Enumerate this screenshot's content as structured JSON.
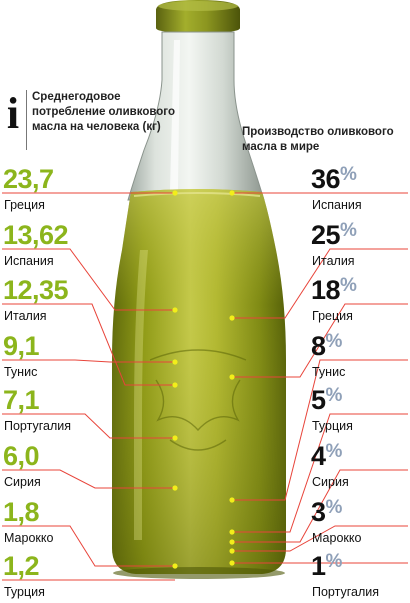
{
  "left": {
    "icon": "info-i",
    "title": "Среднегодовое потребление оливкового масла на человека (кг)",
    "items": [
      {
        "value": "23,7",
        "country": "Греция"
      },
      {
        "value": "13,62",
        "country": "Испания"
      },
      {
        "value": "12,35",
        "country": "Италия"
      },
      {
        "value": "9,1",
        "country": "Тунис"
      },
      {
        "value": "7,1",
        "country": "Португалия"
      },
      {
        "value": "6,0",
        "country": "Сирия"
      },
      {
        "value": "1,8",
        "country": "Марокко"
      },
      {
        "value": "1,2",
        "country": "Турция"
      }
    ]
  },
  "right": {
    "title": "Производство оливкового масла в мире",
    "percent_sign": "%",
    "items": [
      {
        "value": "36",
        "country": "Испания"
      },
      {
        "value": "25",
        "country": "Италия"
      },
      {
        "value": "18",
        "country": "Греция"
      },
      {
        "value": "8",
        "country": "Тунис"
      },
      {
        "value": "5",
        "country": "Турция"
      },
      {
        "value": "4",
        "country": "Сирия"
      },
      {
        "value": "3",
        "country": "Марокко"
      },
      {
        "value": "1",
        "country": "Португалия"
      }
    ]
  },
  "colors": {
    "consumption_value": "#8cb51c",
    "production_value": "#111111",
    "percent_sign": "#8fa0b8",
    "leader_line": "#e8443a",
    "marker_dot": "#f2ee1a",
    "oil": "#9aa31a",
    "cap": "#8f9a22"
  }
}
